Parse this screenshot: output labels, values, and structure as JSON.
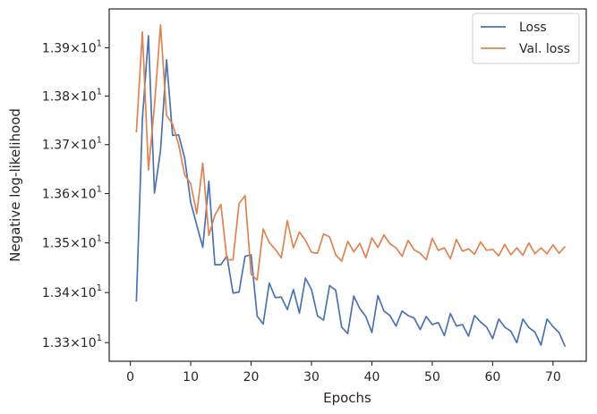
{
  "chart_data": {
    "type": "line",
    "xlabel": "Epochs",
    "ylabel": "Negative log-likelihood",
    "xlim": [
      -3.5,
      75.5
    ],
    "ylim": [
      13.263,
      13.981
    ],
    "y_scale": "log",
    "grid": false,
    "legend_position": "top-right",
    "x_ticks": [
      0,
      10,
      20,
      30,
      40,
      50,
      60,
      70
    ],
    "x_tick_labels": [
      "0",
      "10",
      "20",
      "30",
      "40",
      "50",
      "60",
      "70"
    ],
    "y_ticks": [
      13.3,
      13.4,
      13.5,
      13.6,
      13.7,
      13.8,
      13.9
    ],
    "y_tick_labels": [
      {
        "mantissa": "1.33",
        "times": "×",
        "base": "10",
        "exp": "1"
      },
      {
        "mantissa": "1.34",
        "times": "×",
        "base": "10",
        "exp": "1"
      },
      {
        "mantissa": "1.35",
        "times": "×",
        "base": "10",
        "exp": "1"
      },
      {
        "mantissa": "1.36",
        "times": "×",
        "base": "10",
        "exp": "1"
      },
      {
        "mantissa": "1.37",
        "times": "×",
        "base": "10",
        "exp": "1"
      },
      {
        "mantissa": "1.38",
        "times": "×",
        "base": "10",
        "exp": "1"
      },
      {
        "mantissa": "1.39",
        "times": "×",
        "base": "10",
        "exp": "1"
      }
    ],
    "x": [
      1,
      2,
      3,
      4,
      5,
      6,
      7,
      8,
      9,
      10,
      11,
      12,
      13,
      14,
      15,
      16,
      17,
      18,
      19,
      20,
      21,
      22,
      23,
      24,
      25,
      26,
      27,
      28,
      29,
      30,
      31,
      32,
      33,
      34,
      35,
      36,
      37,
      38,
      39,
      40,
      41,
      42,
      43,
      44,
      45,
      46,
      47,
      48,
      49,
      50,
      51,
      52,
      53,
      54,
      55,
      56,
      57,
      58,
      59,
      60,
      61,
      62,
      63,
      64,
      65,
      66,
      67,
      68,
      69,
      70,
      71,
      72
    ],
    "series": [
      {
        "name": "Loss",
        "color": "#4c72b0",
        "values": [
          13.382,
          13.753,
          13.925,
          13.601,
          13.688,
          13.875,
          13.719,
          13.72,
          13.672,
          13.582,
          13.536,
          13.491,
          13.625,
          13.456,
          13.456,
          13.474,
          13.399,
          13.401,
          13.473,
          13.476,
          13.353,
          13.337,
          13.419,
          13.39,
          13.391,
          13.366,
          13.406,
          13.359,
          13.429,
          13.406,
          13.353,
          13.345,
          13.414,
          13.405,
          13.331,
          13.318,
          13.393,
          13.368,
          13.352,
          13.32,
          13.394,
          13.363,
          13.354,
          13.333,
          13.363,
          13.354,
          13.349,
          13.326,
          13.352,
          13.336,
          13.34,
          13.314,
          13.358,
          13.333,
          13.336,
          13.313,
          13.354,
          13.341,
          13.331,
          13.308,
          13.347,
          13.331,
          13.323,
          13.3,
          13.347,
          13.33,
          13.321,
          13.295,
          13.347,
          13.332,
          13.32,
          13.292
        ]
      },
      {
        "name": "Val. loss",
        "color": "#dd8452",
        "values": [
          13.725,
          13.933,
          13.648,
          13.78,
          13.948,
          13.76,
          13.742,
          13.7,
          13.638,
          13.62,
          13.559,
          13.662,
          13.515,
          13.556,
          13.578,
          13.466,
          13.466,
          13.579,
          13.596,
          13.437,
          13.425,
          13.528,
          13.501,
          13.487,
          13.47,
          13.545,
          13.49,
          13.522,
          13.505,
          13.481,
          13.479,
          13.518,
          13.512,
          13.476,
          13.463,
          13.503,
          13.482,
          13.499,
          13.47,
          13.51,
          13.491,
          13.516,
          13.498,
          13.49,
          13.473,
          13.505,
          13.486,
          13.479,
          13.466,
          13.509,
          13.485,
          13.49,
          13.468,
          13.507,
          13.483,
          13.488,
          13.477,
          13.502,
          13.485,
          13.487,
          13.474,
          13.497,
          13.476,
          13.49,
          13.475,
          13.5,
          13.478,
          13.49,
          13.478,
          13.496,
          13.479,
          13.493
        ]
      }
    ]
  }
}
